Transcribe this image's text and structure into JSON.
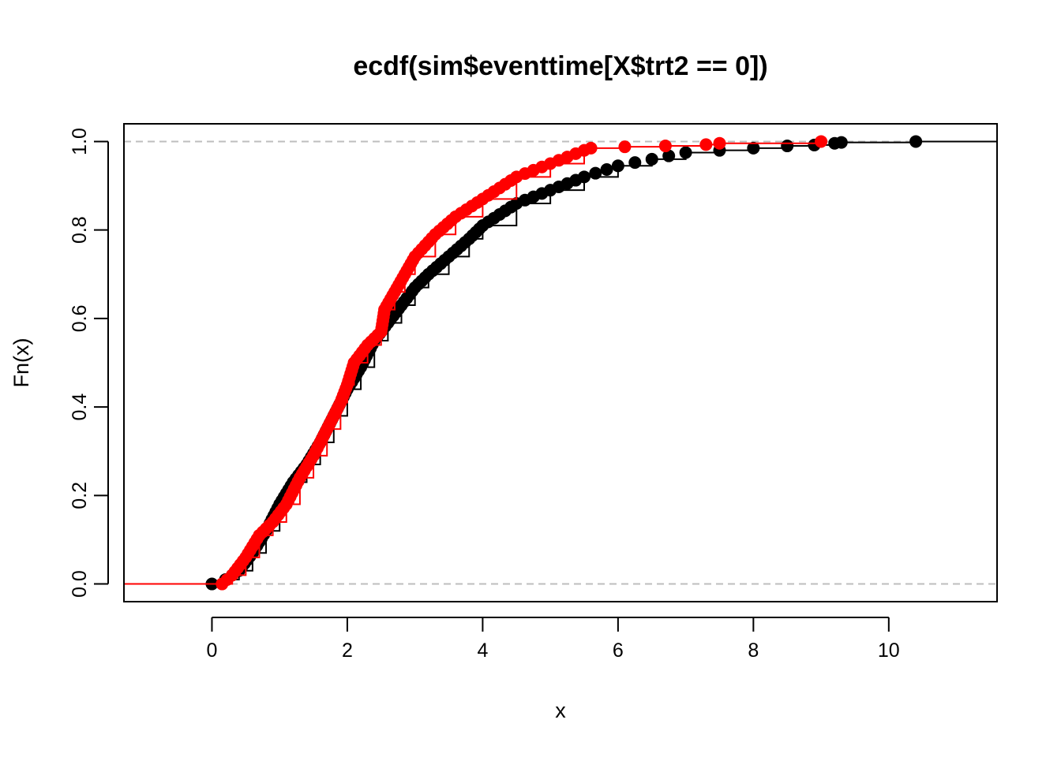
{
  "chart_data": {
    "type": "line",
    "subtype": "ecdf-step",
    "title": "ecdf(sim$eventtime[X$trt2 == 0])",
    "xlabel": "x",
    "ylabel": "Fn(x)",
    "xlim": [
      -1.3,
      11.6
    ],
    "ylim": [
      -0.04,
      1.04
    ],
    "x_ticks": [
      0,
      2,
      4,
      6,
      8,
      10
    ],
    "y_ticks": [
      0.0,
      0.2,
      0.4,
      0.6,
      0.8,
      1.0
    ],
    "x_tick_labels": [
      "0",
      "2",
      "4",
      "6",
      "8",
      "10"
    ],
    "y_tick_labels": [
      "0.0",
      "0.2",
      "0.4",
      "0.6",
      "0.8",
      "1.0"
    ],
    "reference_lines": [
      0,
      1
    ],
    "grid": false,
    "colors": {
      "black": "#000000",
      "red": "#ff0000",
      "reference": "#bebebe"
    },
    "series": [
      {
        "color": "#000000",
        "points": [
          [
            0.0,
            0.0
          ],
          [
            0.2,
            0.01
          ],
          [
            0.4,
            0.03
          ],
          [
            0.6,
            0.07
          ],
          [
            0.8,
            0.12
          ],
          [
            1.0,
            0.18
          ],
          [
            1.2,
            0.23
          ],
          [
            1.4,
            0.27
          ],
          [
            1.6,
            0.32
          ],
          [
            1.8,
            0.38
          ],
          [
            2.0,
            0.44
          ],
          [
            2.2,
            0.49
          ],
          [
            2.4,
            0.55
          ],
          [
            2.6,
            0.59
          ],
          [
            2.8,
            0.63
          ],
          [
            3.0,
            0.67
          ],
          [
            3.2,
            0.7
          ],
          [
            3.5,
            0.74
          ],
          [
            3.8,
            0.78
          ],
          [
            4.0,
            0.81
          ],
          [
            4.5,
            0.86
          ],
          [
            5.0,
            0.89
          ],
          [
            5.5,
            0.92
          ],
          [
            6.0,
            0.945
          ],
          [
            6.5,
            0.96
          ],
          [
            7.0,
            0.975
          ],
          [
            7.5,
            0.98
          ],
          [
            8.0,
            0.985
          ],
          [
            8.5,
            0.99
          ],
          [
            8.9,
            0.992
          ],
          [
            9.2,
            0.996
          ],
          [
            9.3,
            0.998
          ],
          [
            10.4,
            1.0
          ]
        ]
      },
      {
        "color": "#ff0000",
        "points": [
          [
            0.15,
            0.0
          ],
          [
            0.3,
            0.02
          ],
          [
            0.5,
            0.06
          ],
          [
            0.7,
            0.11
          ],
          [
            0.9,
            0.14
          ],
          [
            1.1,
            0.18
          ],
          [
            1.3,
            0.24
          ],
          [
            1.5,
            0.29
          ],
          [
            1.7,
            0.35
          ],
          [
            1.9,
            0.41
          ],
          [
            2.0,
            0.45
          ],
          [
            2.1,
            0.5
          ],
          [
            2.3,
            0.54
          ],
          [
            2.5,
            0.57
          ],
          [
            2.55,
            0.62
          ],
          [
            2.7,
            0.66
          ],
          [
            2.85,
            0.7
          ],
          [
            3.0,
            0.74
          ],
          [
            3.3,
            0.79
          ],
          [
            3.6,
            0.83
          ],
          [
            4.0,
            0.87
          ],
          [
            4.5,
            0.92
          ],
          [
            5.0,
            0.95
          ],
          [
            5.5,
            0.98
          ],
          [
            5.6,
            0.985
          ],
          [
            6.1,
            0.988
          ],
          [
            6.7,
            0.99
          ],
          [
            7.3,
            0.993
          ],
          [
            7.5,
            0.996
          ],
          [
            9.0,
            1.0
          ]
        ]
      }
    ]
  }
}
